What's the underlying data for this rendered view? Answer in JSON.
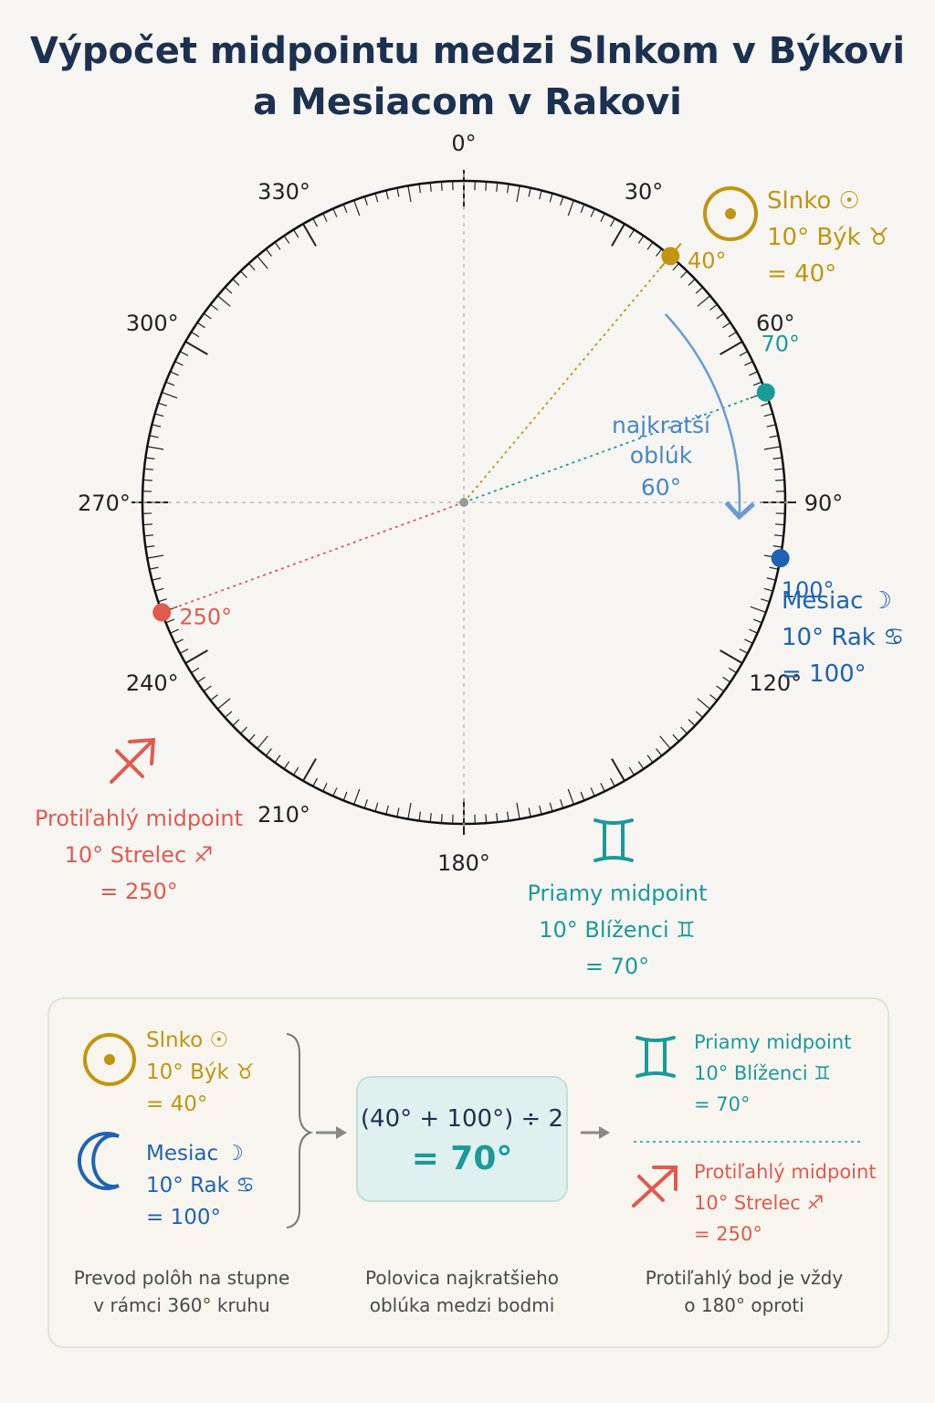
{
  "title": {
    "line1": "Výpočet midpointu medzi Slnkom v Býkovi",
    "line2": "a Mesiacom v Rakovi"
  },
  "wheel": {
    "degree_labels": [
      "0°",
      "30°",
      "60°",
      "90°",
      "120°",
      "180°",
      "210°",
      "240°",
      "270°",
      "300°",
      "330°"
    ],
    "arc_label": [
      "najkratší",
      "oblúk",
      "60°"
    ],
    "points": [
      {
        "id": "sun",
        "degree": 40,
        "label": "40°",
        "color": "#c0960f"
      },
      {
        "id": "moon",
        "degree": 100,
        "label": "100°",
        "color": "#1e63b2"
      },
      {
        "id": "direct",
        "degree": 70,
        "label": "70°",
        "color": "#1b9a9a"
      },
      {
        "id": "opposite",
        "degree": 250,
        "label": "250°",
        "color": "#e05a4f"
      }
    ],
    "arc": {
      "from_degree": 40,
      "to_degree": 100
    }
  },
  "sun": {
    "name": "Slnko",
    "name_symbol": "☉",
    "position": "10° Býk",
    "sign_symbol": "♉",
    "value": "= 40°",
    "big_icon": "sun-symbol"
  },
  "moon": {
    "name": "Mesiac",
    "name_symbol": "☽",
    "position": "10° Rak",
    "sign_symbol": "♋",
    "value": "= 100°",
    "big_icon": "moon-symbol"
  },
  "direct_midpoint": {
    "name": "Priamy midpoint",
    "position": "10° Blíženci",
    "sign_symbol": "♊",
    "value": "= 70°",
    "big_icon": "gemini-symbol"
  },
  "opposite_midpoint": {
    "name": "Protiľahlý midpoint",
    "position": "10° Strelec",
    "sign_symbol": "♐",
    "value": "= 250°",
    "big_icon": "sagittarius-symbol"
  },
  "panel": {
    "formula_expr": "(40° + 100°) ÷ 2",
    "formula_result": "= 70°",
    "captions": [
      [
        "Prevod polôh na stupne",
        "v rámci 360° kruhu"
      ],
      [
        "Polovica najkratšieho",
        "oblúka medzi bodmi"
      ],
      [
        "Protiľahlý bod je vždy",
        "o 180° oproti"
      ]
    ]
  },
  "colors": {
    "sun": "#c0960f",
    "moon": "#1e63b2",
    "direct": "#1b9a9a",
    "opposite": "#e05a4f",
    "arc": "#6a9bd0",
    "title": "#1c3150"
  }
}
